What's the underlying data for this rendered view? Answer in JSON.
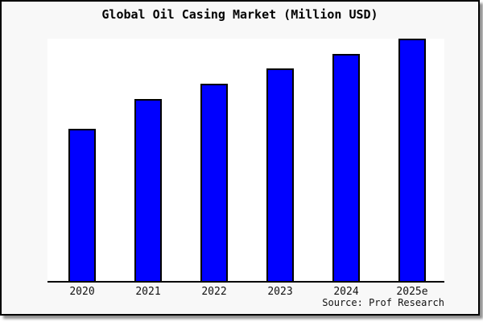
{
  "chart": {
    "title": "Global Oil Casing Market (Million USD)",
    "source": "Source: Prof Research"
  },
  "colors": {
    "bar_fill": "#0000ff",
    "bar_edge": "#000000",
    "figure_background": "#f8f8f8",
    "plot_background": "#ffffff",
    "border": "#000000"
  },
  "chart_data": {
    "type": "bar",
    "title": "Global Oil Casing Market (Million USD)",
    "categories": [
      "2020",
      "2021",
      "2022",
      "2023",
      "2024",
      "2025e"
    ],
    "values": [
      62.8,
      75.1,
      81.4,
      87.7,
      93.7,
      100
    ],
    "value_scale": "relative index estimated from bar heights; no y-axis tick labels are shown; tallest bar (2025e) = 100",
    "xlabel": "",
    "ylabel": "",
    "ylim": [
      0,
      100.7
    ],
    "grid": false,
    "legend": false,
    "bar_color": "#0000ff",
    "bar_edge_color": "#000000",
    "annotations": [
      "Source: Prof Research"
    ]
  }
}
